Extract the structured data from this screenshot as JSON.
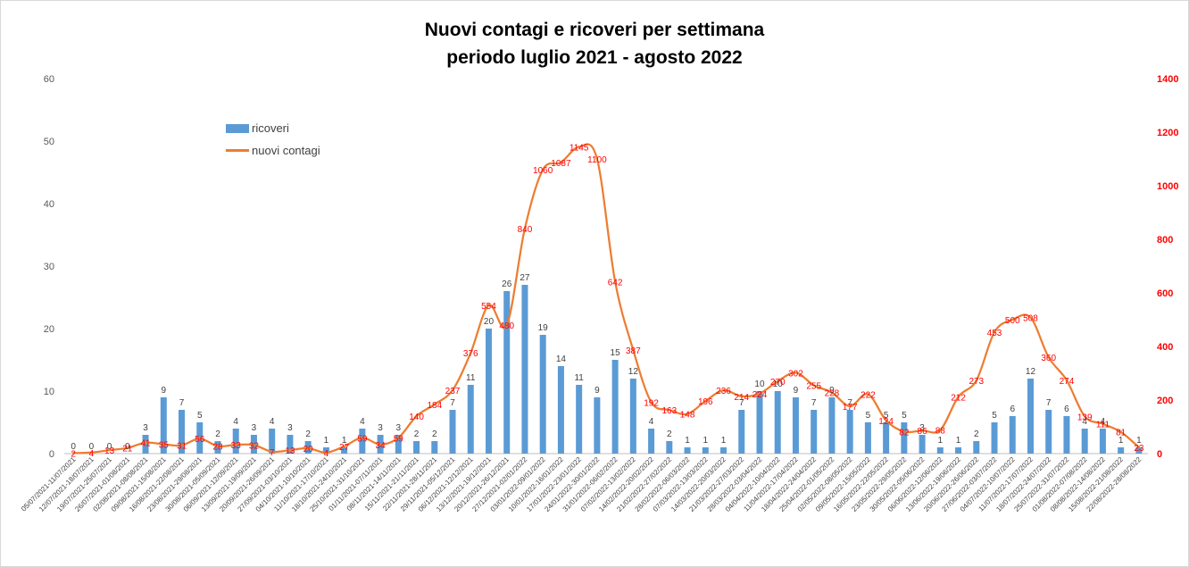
{
  "chart_data": {
    "type": "bar",
    "title": [
      "Nuovi contagi e ricoveri per settimana",
      "periodo luglio 2021 - agosto 2022"
    ],
    "categories": [
      "05/07/2021-11/07/2021",
      "12/07/2021-18/07/2021",
      "19/07/2021-25/07/2021",
      "26/07/2021-01/08/2021",
      "02/08/2021-08/08/2021",
      "09/08/2021-15/08/2021",
      "16/08/2021-22/08/2021",
      "23/08/2021-29/08/2021",
      "30/08/2021-05/09/2021",
      "06/09/2021-12/09/2021",
      "13/09/2021-19/09/2021",
      "20/09/2021-26/09/2021",
      "27/09/2021-03/10/2021",
      "04/10/2021-10/10/2021",
      "11/10/2021-17/10/2021",
      "18/10/2021-24/10/2021",
      "25/10/2021-31/10/2021",
      "01/11/2021-07/11/2021",
      "08/11/2021-14/11/2021",
      "15/11/2021-21/11/2021",
      "22/11/2021-28/11/2021",
      "29/11/2021-05/12/2021",
      "06/12/2021-12/12/2021",
      "13/12/2021-19/12/2021",
      "20/12/2021-26/12/2021",
      "27/12/2021-02/01/2022",
      "03/01/2022-09/01/2022",
      "10/01/2022-16/01/2022",
      "17/01/2022-23/01/2022",
      "24/01/2022-30/01/2022",
      "31/01/2022-06/02/2022",
      "07/02/2022-13/02/2022",
      "14/02/2022-20/02/2022",
      "21/02/2022-27/02/2022",
      "28/02/2022-06/03/2022",
      "07/03/2022-13/03/2022",
      "14/03/2022-20/03/2022",
      "21/03/2022-27/03/2022",
      "28/03/2022-03/04/2022",
      "04/04/2022-10/04/2022",
      "11/04/2022-17/04/2022",
      "18/04/2022-24/04/2022",
      "25/04/2022-01/05/2022",
      "02/05/2022-08/05/2022",
      "09/05/2022-15/05/2022",
      "16/05/2022-22/05/2022",
      "23/05/2022-29/05/2022",
      "30/05/2022-05/06/2022",
      "06/06/2022-12/06/2022",
      "13/06/2022-19/06/2022",
      "20/06/2022-26/06/2022",
      "27/06/2022-03/07/2022",
      "04/07/2022-10/07/2022",
      "11/07/2022-17/07/2022",
      "18/07/2022-24/07/2022",
      "25/07/2022-31/07/2022",
      "01/08/2022-07/08/2022",
      "08/08/2022-14/08/2022",
      "15/08/2022-21/08/2022",
      "22/08/2022-28/08/2022"
    ],
    "series": [
      {
        "name": "ricoveri",
        "type": "bar",
        "axis": "left",
        "color": "#5b9bd5",
        "values": [
          0,
          0,
          0,
          0,
          3,
          9,
          7,
          5,
          2,
          4,
          3,
          4,
          3,
          2,
          1,
          1,
          4,
          3,
          3,
          2,
          2,
          7,
          11,
          20,
          26,
          27,
          19,
          14,
          11,
          9,
          15,
          12,
          4,
          2,
          1,
          1,
          1,
          7,
          10,
          10,
          9,
          7,
          9,
          7,
          5,
          5,
          5,
          3,
          1,
          1,
          2,
          5,
          6,
          12,
          7,
          6,
          4,
          4,
          1,
          1
        ]
      },
      {
        "name": "nuovi contagi",
        "type": "line",
        "axis": "right",
        "color": "#ed7d31",
        "values": [
          2,
          4,
          13,
          21,
          41,
          35,
          31,
          56,
          28,
          33,
          32,
          7,
          13,
          20,
          4,
          27,
          59,
          34,
          59,
          140,
          184,
          237,
          376,
          554,
          480,
          840,
          1060,
          1087,
          1145,
          1100,
          642,
          387,
          192,
          163,
          148,
          196,
          236,
          214,
          224,
          270,
          302,
          255,
          228,
          177,
          222,
          124,
          82,
          86,
          88,
          212,
          273,
          453,
          500,
          508,
          360,
          274,
          139,
          111,
          81,
          23
        ]
      }
    ],
    "ylim_left": [
      0,
      60
    ],
    "yticks_left": [
      0,
      10,
      20,
      30,
      40,
      50,
      60
    ],
    "ylim_right": [
      0,
      1400
    ],
    "yticks_right": [
      0,
      200,
      400,
      600,
      800,
      1000,
      1200,
      1400
    ],
    "label_color": "#ff0000",
    "legend": [
      "ricoveri",
      "nuovi contagi"
    ],
    "legend_position": "top-left",
    "grid": false
  }
}
